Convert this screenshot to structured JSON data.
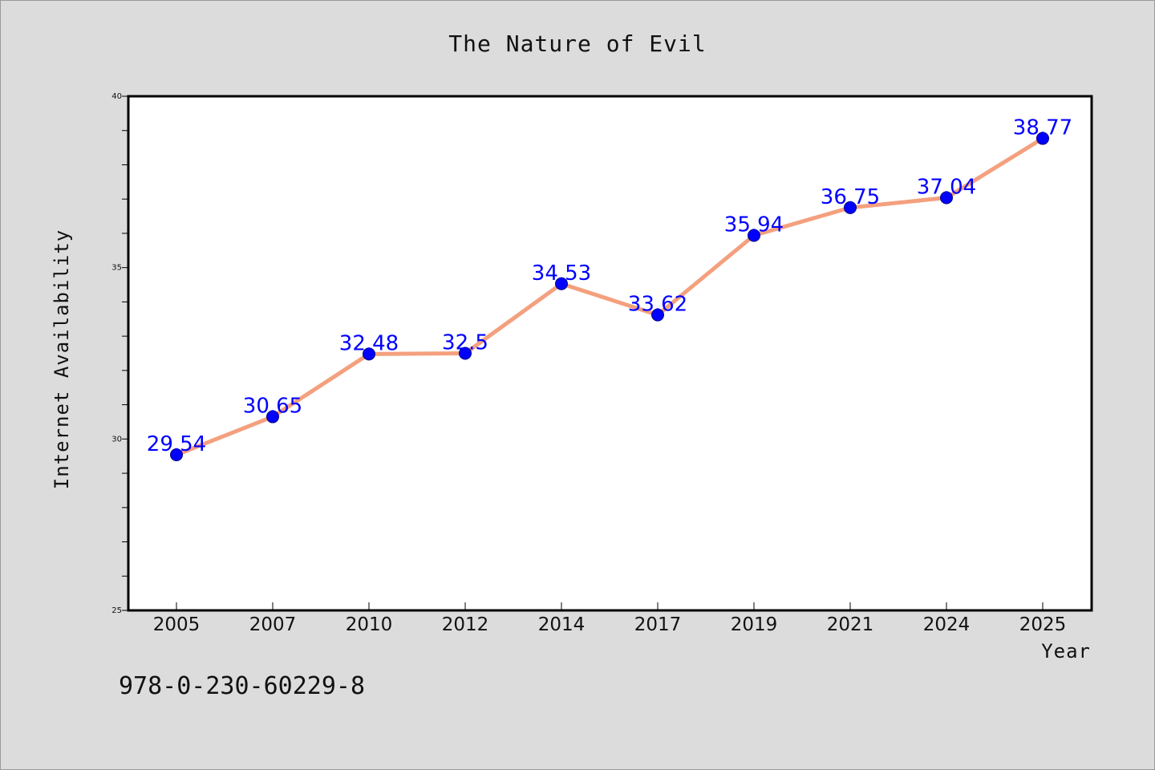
{
  "page": {
    "background": "#dcdcdc"
  },
  "isbn_text": "978-0-230-60229-8",
  "chart_data": {
    "type": "line",
    "title": "The Nature of Evil",
    "xlabel": "Year",
    "ylabel": "Internet Availability",
    "categories": [
      "2005",
      "2007",
      "2010",
      "2012",
      "2014",
      "2017",
      "2019",
      "2021",
      "2024",
      "2025"
    ],
    "series": [
      {
        "values": [
          29.54,
          30.65,
          32.48,
          32.5,
          34.53,
          33.62,
          35.94,
          36.75,
          37.04,
          38.77
        ],
        "line_color": "#f4a07e",
        "marker_color": "#0000ff",
        "label_color": "#0000ff"
      }
    ],
    "data_labels": [
      "29.54",
      "30.65",
      "32.48",
      "32.5",
      "34.53",
      "33.62",
      "35.94",
      "36.75",
      "37.04",
      "38.77"
    ],
    "ylim": [
      25,
      40
    ],
    "yticks": [
      25,
      30,
      35,
      40
    ],
    "y_minor_step": 1,
    "grid": false,
    "legend": "none",
    "plot_background": "#ffffff",
    "frame_color": "#000000"
  }
}
